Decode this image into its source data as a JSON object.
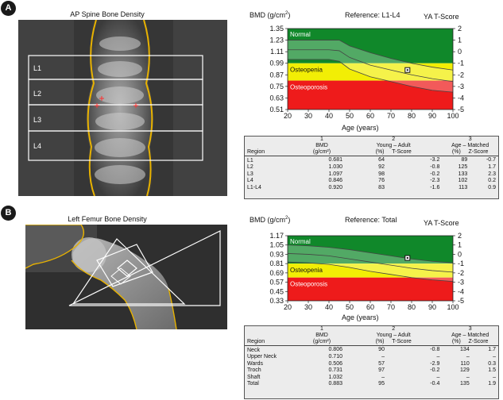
{
  "panels": [
    {
      "badge": "A",
      "image_title": "AP Spine Bone Density",
      "region_labels": [
        "L1",
        "L2",
        "L3",
        "L4"
      ],
      "chart": {
        "bmd_label_prefix": "BMD (g/cm",
        "bmd_label_sup": "2",
        "bmd_label_suffix": ")",
        "reference": "Reference: L1-L4",
        "tscore_label": "YA T-Score",
        "zone_normal": "Normal",
        "zone_osteopenia": "Osteopenia",
        "zone_osteoporosis": "Osteoporosis",
        "xlabel": "Age (years)"
      },
      "table": {
        "headers": {
          "region": "Region",
          "bmd_top": "1",
          "bmd": "BMD",
          "bmd_unit": "(g/cm²)",
          "young_top": "2",
          "young": "Young   –   Adult",
          "young_pct": "(%)",
          "tscore": "T-Score",
          "age_top": "3",
          "age": "Age   –   Matched",
          "age_pct": "(%)",
          "zscore": "Z-Score"
        },
        "rows": [
          {
            "region": "L1",
            "bmd": "0.681",
            "ya_pct": "64",
            "t": "-3.2",
            "am_pct": "89",
            "z": "-0.7"
          },
          {
            "region": "L2",
            "bmd": "1.030",
            "ya_pct": "92",
            "t": "-0.8",
            "am_pct": "125",
            "z": "1.7"
          },
          {
            "region": "L3",
            "bmd": "1.097",
            "ya_pct": "98",
            "t": "-0.2",
            "am_pct": "133",
            "z": "2.3"
          },
          {
            "region": "L4",
            "bmd": "0.846",
            "ya_pct": "76",
            "t": "-2.3",
            "am_pct": "102",
            "z": "0.2"
          },
          {
            "region": "L1-L4",
            "bmd": "0.920",
            "ya_pct": "83",
            "t": "-1.6",
            "am_pct": "113",
            "z": "0.9"
          }
        ]
      }
    },
    {
      "badge": "B",
      "image_title": "Left Femur Bone Density",
      "chart": {
        "bmd_label_prefix": "BMD (g/cm",
        "bmd_label_sup": "2",
        "bmd_label_suffix": ")",
        "reference": "Reference: Total",
        "tscore_label": "YA T-Score",
        "zone_normal": "Normal",
        "zone_osteopenia": "Osteopenia",
        "zone_osteoporosis": "Osteoporosis",
        "xlabel": "Age (years)"
      },
      "table": {
        "headers": {
          "region": "Region",
          "bmd_top": "1",
          "bmd": "BMD",
          "bmd_unit": "(g/cm²)",
          "young_top": "2",
          "young": "Young   –   Adult",
          "young_pct": "(%)",
          "tscore": "T-Score",
          "age_top": "3",
          "age": "Age   –   Matched",
          "age_pct": "(%)",
          "zscore": "Z-Score"
        },
        "rows": [
          {
            "region": "Neck",
            "bmd": "0.806",
            "ya_pct": "90",
            "t": "-0.8",
            "am_pct": "134",
            "z": "1.7"
          },
          {
            "region": "Upper Neck",
            "bmd": "0.710",
            "ya_pct": "–",
            "t": "–",
            "am_pct": "–",
            "z": "–"
          },
          {
            "region": "Wards",
            "bmd": "0.506",
            "ya_pct": "57",
            "t": "-2.9",
            "am_pct": "110",
            "z": "0.3"
          },
          {
            "region": "Troch",
            "bmd": "0.731",
            "ya_pct": "97",
            "t": "-0.2",
            "am_pct": "129",
            "z": "1.5"
          },
          {
            "region": "Shaft",
            "bmd": "1.032",
            "ya_pct": "–",
            "t": "–",
            "am_pct": "–",
            "z": "–"
          },
          {
            "region": "Total",
            "bmd": "0.883",
            "ya_pct": "95",
            "t": "-0.4",
            "am_pct": "135",
            "z": "1.9"
          }
        ]
      }
    }
  ],
  "colors": {
    "normal": "#10882a",
    "osteopenia": "#f2ee05",
    "osteoporosis": "#ee1b1b",
    "table_bg": "#ececec"
  },
  "chart_data": [
    {
      "type": "area",
      "title": "Reference: L1-L4",
      "xlabel": "Age (years)",
      "ylabel": "BMD (g/cm2)",
      "y2label": "YA T-Score",
      "x_ticks": [
        20,
        30,
        40,
        50,
        60,
        70,
        80,
        90,
        100
      ],
      "y_ticks": [
        0.51,
        0.63,
        0.75,
        0.87,
        0.99,
        1.11,
        1.23,
        1.35
      ],
      "y2_ticks": [
        2,
        1,
        0,
        -1,
        -2,
        -3,
        -4,
        -5
      ],
      "xlim": [
        20,
        100
      ],
      "ylim": [
        0.51,
        1.35
      ],
      "zones": [
        {
          "name": "Normal",
          "from_t": -1,
          "to_t": 2
        },
        {
          "name": "Osteopenia",
          "from_t": -2.5,
          "to_t": -1
        },
        {
          "name": "Osteoporosis",
          "from_t": -5,
          "to_t": -2.5
        }
      ],
      "reference_curve": {
        "age": [
          20,
          30,
          40,
          45,
          50,
          60,
          70,
          80,
          90,
          100
        ],
        "upper": [
          1.23,
          1.23,
          1.23,
          1.23,
          1.17,
          1.1,
          1.04,
          0.99,
          0.95,
          0.92
        ],
        "mean": [
          1.13,
          1.13,
          1.13,
          1.12,
          1.05,
          0.97,
          0.92,
          0.87,
          0.83,
          0.8
        ],
        "lower": [
          1.03,
          1.03,
          1.03,
          1.01,
          0.93,
          0.85,
          0.8,
          0.75,
          0.71,
          0.69
        ]
      },
      "patient_point": {
        "age": 78,
        "bmd": 0.92
      }
    },
    {
      "type": "area",
      "title": "Reference: Total",
      "xlabel": "Age (years)",
      "ylabel": "BMD (g/cm2)",
      "y2label": "YA T-Score",
      "x_ticks": [
        20,
        30,
        40,
        50,
        60,
        70,
        80,
        90,
        100
      ],
      "y_ticks": [
        0.33,
        0.45,
        0.57,
        0.69,
        0.81,
        0.93,
        1.05,
        1.17
      ],
      "y2_ticks": [
        2,
        1,
        0,
        -1,
        -2,
        -3,
        -4,
        -5
      ],
      "xlim": [
        20,
        100
      ],
      "ylim": [
        0.33,
        1.17
      ],
      "zones": [
        {
          "name": "Normal",
          "from_t": -1,
          "to_t": 2
        },
        {
          "name": "Osteopenia",
          "from_t": -2.5,
          "to_t": -1
        },
        {
          "name": "Osteoporosis",
          "from_t": -5,
          "to_t": -2.5
        }
      ],
      "reference_curve": {
        "age": [
          20,
          30,
          40,
          50,
          60,
          70,
          80,
          90,
          100
        ],
        "upper": [
          1.05,
          1.04,
          1.02,
          0.99,
          0.95,
          0.91,
          0.87,
          0.84,
          0.82
        ],
        "mean": [
          0.94,
          0.93,
          0.91,
          0.87,
          0.83,
          0.79,
          0.75,
          0.72,
          0.7
        ],
        "lower": [
          0.83,
          0.82,
          0.8,
          0.76,
          0.71,
          0.67,
          0.63,
          0.6,
          0.58
        ]
      },
      "patient_point": {
        "age": 78,
        "bmd": 0.883
      }
    }
  ]
}
